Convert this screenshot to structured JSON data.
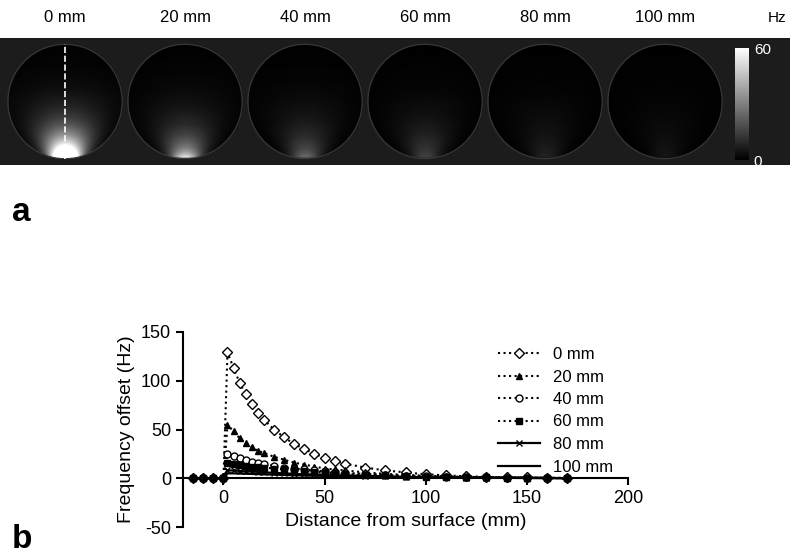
{
  "chart_data": [
    {
      "type": "image",
      "panel_label": "a",
      "labels": [
        "0 mm",
        "20 mm",
        "40 mm",
        "60 mm",
        "80 mm",
        "100 mm"
      ],
      "colorbar": {
        "range": [
          0,
          60
        ],
        "ticks": [
          0,
          60
        ],
        "label": "Hz"
      }
    },
    {
      "type": "line",
      "panel_label": "b",
      "xlabel": "Distance from surface (mm)",
      "ylabel": "Frequency offset (Hz)",
      "x": [
        -15,
        -10,
        -5,
        0,
        2,
        5,
        8,
        11,
        14,
        17,
        20,
        25,
        30,
        35,
        40,
        45,
        50,
        55,
        60,
        70,
        80,
        90,
        100,
        110,
        120,
        130,
        140,
        150,
        160,
        170
      ],
      "xlim": [
        -20,
        200
      ],
      "xticks": [
        0,
        50,
        100,
        150,
        200
      ],
      "ylim": [
        -50,
        150
      ],
      "yticks": [
        -50,
        0,
        50,
        100,
        150
      ],
      "legend": "upper right",
      "series": [
        {
          "name": "0 mm",
          "color": "#000000",
          "marker": "diamond_open",
          "line_style": "dotted",
          "values": [
            0,
            0,
            0,
            0,
            129,
            113,
            98,
            86,
            76,
            67,
            60,
            50,
            42,
            35,
            30,
            25,
            21,
            18,
            15,
            11,
            8,
            6,
            4,
            3,
            2,
            1.5,
            1,
            1,
            0.5,
            0.5
          ]
        },
        {
          "name": "20 mm",
          "color": "#000000",
          "marker": "triangle",
          "line_style": "dotted",
          "values": [
            0,
            0,
            0,
            0,
            55,
            48,
            41,
            36,
            32,
            28,
            26,
            22,
            19,
            16,
            14,
            12,
            10,
            9,
            8,
            6,
            4.5,
            3.5,
            2.5,
            2,
            1.5,
            1,
            1,
            0.5,
            0.5,
            0
          ]
        },
        {
          "name": "40 mm",
          "color": "#000000",
          "marker": "circle_open",
          "line_style": "dotted",
          "values": [
            0,
            0,
            0,
            0,
            25,
            23,
            21,
            19,
            17,
            16,
            15,
            13,
            11,
            10,
            9,
            8,
            7,
            6,
            5.5,
            4.5,
            3.5,
            2.5,
            2,
            1.5,
            1,
            1,
            0.5,
            0.5,
            0.5,
            0
          ]
        },
        {
          "name": "60 mm",
          "color": "#000000",
          "marker": "square",
          "line_style": "dotted",
          "values": [
            0,
            0,
            0,
            0,
            16,
            15,
            14,
            13,
            12,
            11.5,
            11,
            10,
            9,
            8,
            7,
            6.5,
            6,
            5,
            4.5,
            3.5,
            3,
            2,
            1.5,
            1.2,
            1,
            0.8,
            0.5,
            0.5,
            0.3,
            0
          ]
        },
        {
          "name": "80 mm",
          "color": "#000000",
          "marker": "x",
          "line_style": "solid",
          "values": [
            0,
            0,
            0,
            0,
            8,
            8,
            7.5,
            7,
            7,
            6.5,
            6,
            5.5,
            5,
            4.5,
            4,
            4,
            3.5,
            3,
            3,
            2.5,
            2,
            1.5,
            1,
            1,
            0.7,
            0.5,
            0.4,
            0.3,
            0.2,
            0
          ]
        },
        {
          "name": "100 mm",
          "color": "#000000",
          "marker": "none",
          "line_style": "solid",
          "values": [
            0,
            0,
            0,
            0,
            5,
            5,
            4.8,
            4.6,
            4.4,
            4.2,
            4,
            3.7,
            3.4,
            3.1,
            2.8,
            2.6,
            2.4,
            2.2,
            2,
            1.7,
            1.4,
            1.1,
            0.9,
            0.7,
            0.6,
            0.5,
            0.4,
            0.3,
            0.2,
            0.1
          ]
        }
      ]
    }
  ]
}
